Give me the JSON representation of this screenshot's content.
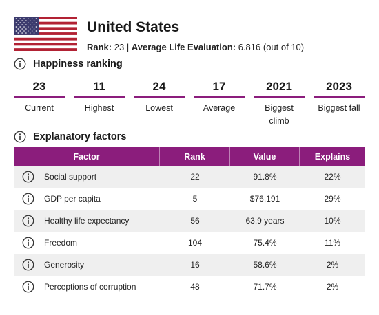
{
  "header": {
    "country": "United States",
    "rank_label": "Rank:",
    "rank_value": "23",
    "separator": "|",
    "evaluation_label": "Average Life Evaluation:",
    "evaluation_value": "6.816 (out of 10)"
  },
  "happiness": {
    "title": "Happiness ranking",
    "stats": [
      {
        "value": "23",
        "caption": "Current"
      },
      {
        "value": "11",
        "caption": "Highest"
      },
      {
        "value": "24",
        "caption": "Lowest"
      },
      {
        "value": "17",
        "caption": "Average"
      },
      {
        "value": "2021",
        "caption": "Biggest climb"
      },
      {
        "value": "2023",
        "caption": "Biggest fall"
      }
    ]
  },
  "factors": {
    "title": "Explanatory factors",
    "columns": [
      "Factor",
      "Rank",
      "Value",
      "Explains"
    ],
    "rows": [
      {
        "factor": "Social support",
        "rank": "22",
        "value": "91.8%",
        "explains": "22%"
      },
      {
        "factor": "GDP per capita",
        "rank": "5",
        "value": "$76,191",
        "explains": "29%"
      },
      {
        "factor": "Healthy life expectancy",
        "rank": "56",
        "value": "63.9 years",
        "explains": "10%"
      },
      {
        "factor": "Freedom",
        "rank": "104",
        "value": "75.4%",
        "explains": "11%"
      },
      {
        "factor": "Generosity",
        "rank": "16",
        "value": "58.6%",
        "explains": "2%"
      },
      {
        "factor": "Perceptions of corruption",
        "rank": "48",
        "value": "71.7%",
        "explains": "2%"
      }
    ]
  },
  "colors": {
    "accent": "#8b1d7c",
    "row_shade": "#efefef",
    "flag_red": "#b22234",
    "flag_blue": "#3c3b6e"
  },
  "icons": {
    "flag": "us-flag-icon",
    "info": "info-icon"
  }
}
